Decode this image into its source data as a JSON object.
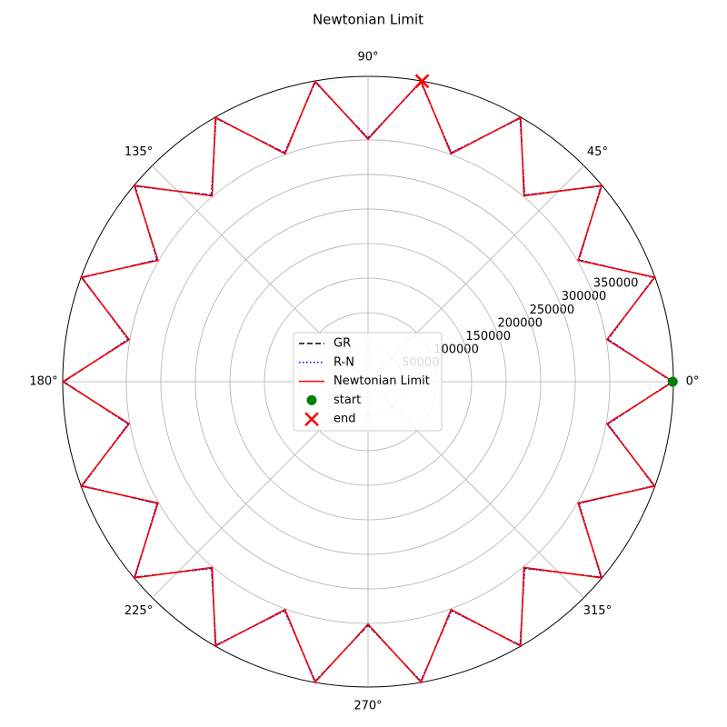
{
  "chart_data": {
    "type": "polar_line",
    "title": "Newtonian Limit",
    "theta": [
      0,
      10,
      20,
      30,
      40,
      50,
      60,
      70,
      80,
      90,
      100,
      110,
      120,
      130,
      140,
      150,
      160,
      170,
      180,
      190,
      200,
      210,
      220,
      230,
      240,
      250,
      260,
      270,
      280,
      290,
      300,
      310,
      320,
      330,
      340,
      350,
      360
    ],
    "series": [
      {
        "name": "GR",
        "color": "#000000",
        "dash": "dashed",
        "values": [
          441000,
          352000,
          441000,
          352000,
          441000,
          352000,
          441000,
          352000,
          441000,
          352000,
          441000,
          352000,
          441000,
          352000,
          441000,
          352000,
          441000,
          352000,
          441000,
          352000,
          441000,
          352000,
          441000,
          352000,
          441000,
          352000,
          441000,
          352000,
          441000,
          352000,
          441000,
          352000,
          441000,
          352000,
          441000,
          352000,
          441000
        ]
      },
      {
        "name": "R-N",
        "color": "#0000ff",
        "dash": "dotted",
        "values": [
          440000,
          353000,
          440000,
          353000,
          440000,
          353000,
          440000,
          353000,
          440000,
          353000,
          440000,
          353000,
          440000,
          353000,
          440000,
          353000,
          440000,
          353000,
          440000,
          353000,
          440000,
          353000,
          440000,
          353000,
          440000,
          353000,
          440000,
          353000,
          440000,
          353000,
          440000,
          353000,
          440000,
          353000,
          440000,
          353000,
          440000
        ]
      },
      {
        "name": "Newtonian Limit",
        "color": "#ff0000",
        "dash": "solid",
        "values": [
          442000,
          351000,
          442000,
          351000,
          442000,
          351000,
          442000,
          351000,
          442000,
          351000,
          442000,
          351000,
          442000,
          351000,
          442000,
          351000,
          442000,
          351000,
          442000,
          351000,
          442000,
          351000,
          442000,
          351000,
          442000,
          351000,
          442000,
          351000,
          442000,
          351000,
          442000,
          351000,
          442000,
          351000,
          442000,
          351000,
          442000
        ]
      }
    ],
    "start": {
      "name": "start",
      "color": "#008000",
      "theta": 0,
      "r": 441000
    },
    "end": {
      "name": "end",
      "color": "#ff0000",
      "theta": 79.8,
      "r": 442000
    },
    "rlim": [
      0,
      442000
    ],
    "rticks": [
      50000,
      100000,
      150000,
      200000,
      250000,
      300000,
      350000
    ],
    "thetaticks": [
      {
        "value": 0,
        "label": "0°"
      },
      {
        "value": 45,
        "label": "45°"
      },
      {
        "value": 90,
        "label": "90°"
      },
      {
        "value": 135,
        "label": "135°"
      },
      {
        "value": 180,
        "label": "180°"
      },
      {
        "value": 225,
        "label": "225°"
      },
      {
        "value": 270,
        "label": "270°"
      },
      {
        "value": 315,
        "label": "315°"
      }
    ],
    "grid": true,
    "legend": "center"
  }
}
